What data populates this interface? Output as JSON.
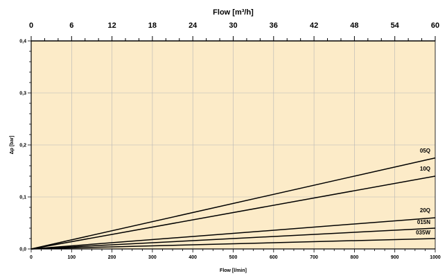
{
  "chart_data": {
    "type": "line",
    "title": "",
    "top_axis": {
      "label": "Flow [m³/h]",
      "ticks": [
        "0",
        "6",
        "12",
        "18",
        "24",
        "30",
        "36",
        "42",
        "48",
        "54",
        "60"
      ],
      "range": [
        0,
        60
      ]
    },
    "x": {
      "label": "Flow [l/min]",
      "ticks": [
        "0",
        "100",
        "200",
        "300",
        "400",
        "500",
        "600",
        "700",
        "800",
        "900",
        "1000"
      ],
      "range": [
        0,
        1000
      ]
    },
    "y": {
      "label": "Δp [bar]",
      "ticks": [
        "0,0",
        "0,1",
        "0,2",
        "0,3",
        "0,4"
      ],
      "range": [
        0,
        0.4
      ]
    },
    "grid": true,
    "colors": {
      "plot_background": "#fcebc8",
      "grid": "#b5b5b5",
      "line": "#000000",
      "axis": "#000000"
    },
    "series": [
      {
        "name": "05Q",
        "x": [
          0,
          1000
        ],
        "y": [
          0,
          0.175
        ]
      },
      {
        "name": "10Q",
        "x": [
          0,
          1000
        ],
        "y": [
          0,
          0.14
        ]
      },
      {
        "name": "20Q",
        "x": [
          0,
          1000
        ],
        "y": [
          0,
          0.06
        ]
      },
      {
        "name": "015N",
        "x": [
          0,
          1000
        ],
        "y": [
          0,
          0.04
        ]
      },
      {
        "name": "035W",
        "x": [
          0,
          1000
        ],
        "y": [
          0,
          0.02
        ]
      }
    ]
  }
}
